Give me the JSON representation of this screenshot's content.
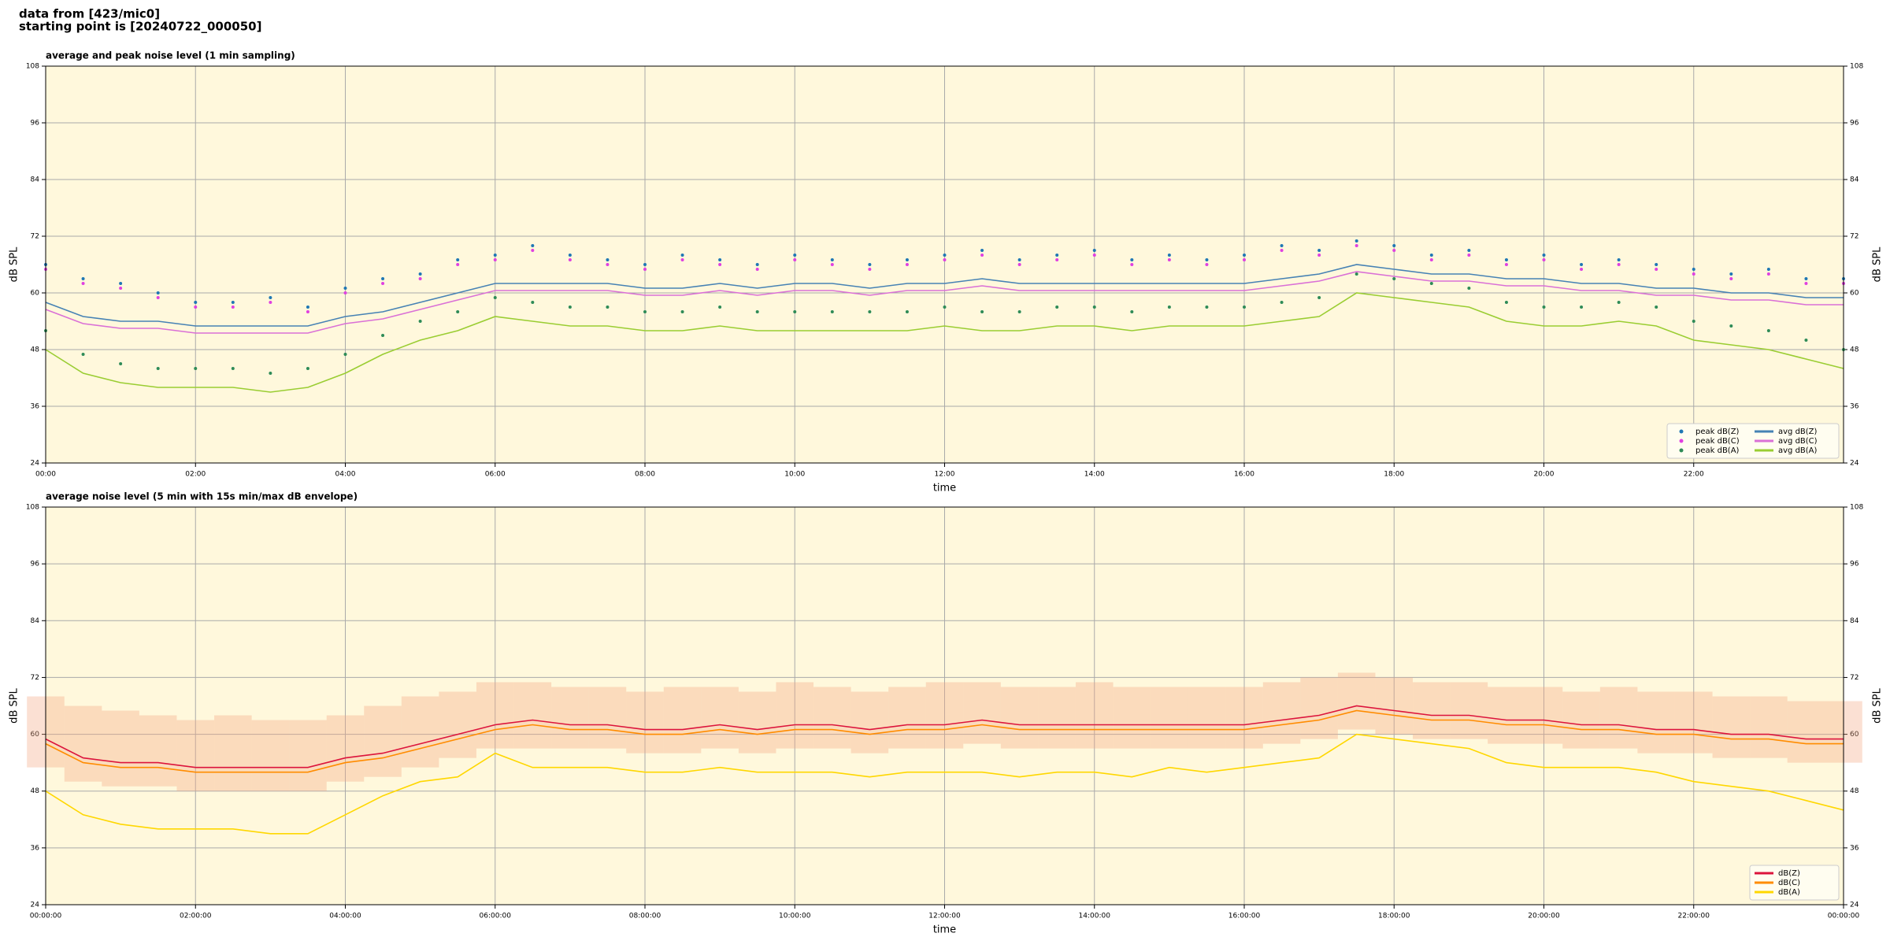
{
  "header": {
    "lines": [
      "data from [423/mic0]",
      "starting point is [20240722_000050]"
    ]
  },
  "chart_data": [
    {
      "type": "line",
      "title": "average and peak noise level (1 min sampling)",
      "xlabel": "time",
      "ylabel": "dB SPL",
      "x": [
        0,
        0.5,
        1,
        1.5,
        2,
        2.5,
        3,
        3.5,
        4,
        4.5,
        5,
        5.5,
        6,
        6.5,
        7,
        7.5,
        8,
        8.5,
        9,
        9.5,
        10,
        10.5,
        11,
        11.5,
        12,
        12.5,
        13,
        13.5,
        14,
        14.5,
        15,
        15.5,
        16,
        16.5,
        17,
        17.5,
        18,
        18.5,
        19,
        19.5,
        20,
        20.5,
        21,
        21.5,
        22,
        22.5,
        23,
        23.5,
        24
      ],
      "xlim": [
        0,
        24
      ],
      "xticks": [
        {
          "value": 0,
          "label": "00:00"
        },
        {
          "value": 2,
          "label": "02:00"
        },
        {
          "value": 4,
          "label": "04:00"
        },
        {
          "value": 6,
          "label": "06:00"
        },
        {
          "value": 8,
          "label": "08:00"
        },
        {
          "value": 10,
          "label": "10:00"
        },
        {
          "value": 12,
          "label": "12:00"
        },
        {
          "value": 14,
          "label": "14:00"
        },
        {
          "value": 16,
          "label": "16:00"
        },
        {
          "value": 18,
          "label": "18:00"
        },
        {
          "value": 20,
          "label": "20:00"
        },
        {
          "value": 22,
          "label": "22:00"
        }
      ],
      "ylim": [
        24,
        108
      ],
      "yticks": [
        24,
        36,
        48,
        60,
        72,
        84,
        96,
        108
      ],
      "grid": true,
      "legend": "lower right",
      "legend_columns": 2,
      "series": [
        {
          "name": "peak dB(Z)",
          "mode": "markers",
          "color": "#1f77b4",
          "values": [
            66,
            63,
            62,
            60,
            58,
            58,
            59,
            57,
            61,
            63,
            64,
            67,
            68,
            70,
            68,
            67,
            66,
            68,
            67,
            66,
            68,
            67,
            66,
            67,
            68,
            69,
            67,
            68,
            69,
            67,
            68,
            67,
            68,
            70,
            69,
            71,
            70,
            68,
            69,
            67,
            68,
            66,
            67,
            66,
            65,
            64,
            65,
            63,
            63
          ]
        },
        {
          "name": "peak dB(C)",
          "mode": "markers",
          "color": "#e040e0",
          "values": [
            65,
            62,
            61,
            59,
            57,
            57,
            58,
            56,
            60,
            62,
            63,
            66,
            67,
            69,
            67,
            66,
            65,
            67,
            66,
            65,
            67,
            66,
            65,
            66,
            67,
            68,
            66,
            67,
            68,
            66,
            67,
            66,
            67,
            69,
            68,
            70,
            69,
            67,
            68,
            66,
            67,
            65,
            66,
            65,
            64,
            63,
            64,
            62,
            62
          ]
        },
        {
          "name": "peak dB(A)",
          "mode": "markers",
          "color": "#2e8b57",
          "values": [
            52,
            47,
            45,
            44,
            44,
            44,
            43,
            44,
            47,
            51,
            54,
            56,
            59,
            58,
            57,
            57,
            56,
            56,
            57,
            56,
            56,
            56,
            56,
            56,
            57,
            56,
            56,
            57,
            57,
            56,
            57,
            57,
            57,
            58,
            59,
            64,
            63,
            62,
            61,
            58,
            57,
            57,
            58,
            57,
            54,
            53,
            52,
            50,
            48
          ]
        },
        {
          "name": "avg dB(Z)",
          "mode": "line",
          "color": "#4682b4",
          "values": [
            58,
            55,
            54,
            54,
            53,
            53,
            53,
            53,
            55,
            56,
            58,
            60,
            62,
            62,
            62,
            62,
            61,
            61,
            62,
            61,
            62,
            62,
            61,
            62,
            62,
            63,
            62,
            62,
            62,
            62,
            62,
            62,
            62,
            63,
            64,
            66,
            65,
            64,
            64,
            63,
            63,
            62,
            62,
            61,
            61,
            60,
            60,
            59,
            59
          ]
        },
        {
          "name": "avg dB(C)",
          "mode": "line",
          "color": "#da70d6",
          "values": [
            56.5,
            53.5,
            52.5,
            52.5,
            51.5,
            51.5,
            51.5,
            51.5,
            53.5,
            54.5,
            56.5,
            58.5,
            60.5,
            60.5,
            60.5,
            60.5,
            59.5,
            59.5,
            60.5,
            59.5,
            60.5,
            60.5,
            59.5,
            60.5,
            60.5,
            61.5,
            60.5,
            60.5,
            60.5,
            60.5,
            60.5,
            60.5,
            60.5,
            61.5,
            62.5,
            64.5,
            63.5,
            62.5,
            62.5,
            61.5,
            61.5,
            60.5,
            60.5,
            59.5,
            59.5,
            58.5,
            58.5,
            57.5,
            57.5
          ]
        },
        {
          "name": "avg dB(A)",
          "mode": "line",
          "color": "#9acd32",
          "values": [
            48,
            43,
            41,
            40,
            40,
            40,
            39,
            40,
            43,
            47,
            50,
            52,
            55,
            54,
            53,
            53,
            52,
            52,
            53,
            52,
            52,
            52,
            52,
            52,
            53,
            52,
            52,
            53,
            53,
            52,
            53,
            53,
            53,
            54,
            55,
            60,
            59,
            58,
            57,
            54,
            53,
            53,
            54,
            53,
            50,
            49,
            48,
            46,
            44
          ]
        }
      ]
    },
    {
      "type": "line",
      "title": "average noise level (5 min with 15s min/max dB envelope)",
      "xlabel": "time",
      "ylabel": "dB SPL",
      "x": [
        0,
        0.5,
        1,
        1.5,
        2,
        2.5,
        3,
        3.5,
        4,
        4.5,
        5,
        5.5,
        6,
        6.5,
        7,
        7.5,
        8,
        8.5,
        9,
        9.5,
        10,
        10.5,
        11,
        11.5,
        12,
        12.5,
        13,
        13.5,
        14,
        14.5,
        15,
        15.5,
        16,
        16.5,
        17,
        17.5,
        18,
        18.5,
        19,
        19.5,
        20,
        20.5,
        21,
        21.5,
        22,
        22.5,
        23,
        23.5,
        24
      ],
      "xlim": [
        0,
        24
      ],
      "xticks": [
        {
          "value": 0,
          "label": "00:00:00"
        },
        {
          "value": 2,
          "label": "02:00:00"
        },
        {
          "value": 4,
          "label": "04:00:00"
        },
        {
          "value": 6,
          "label": "06:00:00"
        },
        {
          "value": 8,
          "label": "08:00:00"
        },
        {
          "value": 10,
          "label": "10:00:00"
        },
        {
          "value": 12,
          "label": "12:00:00"
        },
        {
          "value": 14,
          "label": "14:00:00"
        },
        {
          "value": 16,
          "label": "16:00:00"
        },
        {
          "value": 18,
          "label": "18:00:00"
        },
        {
          "value": 20,
          "label": "20:00:00"
        },
        {
          "value": 22,
          "label": "22:00:00"
        },
        {
          "value": 24,
          "label": "00:00:00"
        }
      ],
      "ylim": [
        24,
        108
      ],
      "yticks": [
        24,
        36,
        48,
        60,
        72,
        84,
        96,
        108
      ],
      "grid": true,
      "legend": "lower right",
      "legend_columns": 1,
      "envelope": {
        "color": "#f4a582",
        "lower": [
          53,
          50,
          49,
          49,
          48,
          48,
          48,
          48,
          50,
          51,
          53,
          55,
          57,
          57,
          57,
          57,
          56,
          56,
          57,
          56,
          57,
          57,
          56,
          57,
          57,
          58,
          57,
          57,
          57,
          57,
          57,
          57,
          57,
          58,
          59,
          61,
          60,
          59,
          59,
          58,
          58,
          57,
          57,
          56,
          56,
          55,
          55,
          54,
          54
        ],
        "upper": [
          68,
          66,
          65,
          64,
          63,
          64,
          63,
          63,
          64,
          66,
          68,
          69,
          71,
          71,
          70,
          70,
          69,
          70,
          70,
          69,
          71,
          70,
          69,
          70,
          71,
          71,
          70,
          70,
          71,
          70,
          70,
          70,
          70,
          71,
          72,
          73,
          72,
          71,
          71,
          70,
          70,
          69,
          70,
          69,
          69,
          68,
          68,
          67,
          67
        ]
      },
      "series": [
        {
          "name": "dB(Z)",
          "mode": "line",
          "color": "#dc143c",
          "values": [
            59,
            55,
            54,
            54,
            53,
            53,
            53,
            53,
            55,
            56,
            58,
            60,
            62,
            63,
            62,
            62,
            61,
            61,
            62,
            61,
            62,
            62,
            61,
            62,
            62,
            63,
            62,
            62,
            62,
            62,
            62,
            62,
            62,
            63,
            64,
            66,
            65,
            64,
            64,
            63,
            63,
            62,
            62,
            61,
            61,
            60,
            60,
            59,
            59
          ]
        },
        {
          "name": "dB(C)",
          "mode": "line",
          "color": "#ff8c00",
          "values": [
            58,
            54,
            53,
            53,
            52,
            52,
            52,
            52,
            54,
            55,
            57,
            59,
            61,
            62,
            61,
            61,
            60,
            60,
            61,
            60,
            61,
            61,
            60,
            61,
            61,
            62,
            61,
            61,
            61,
            61,
            61,
            61,
            61,
            62,
            63,
            65,
            64,
            63,
            63,
            62,
            62,
            61,
            61,
            60,
            60,
            59,
            59,
            58,
            58
          ]
        },
        {
          "name": "dB(A)",
          "mode": "line",
          "color": "#ffd700",
          "values": [
            48,
            43,
            41,
            40,
            40,
            40,
            39,
            39,
            43,
            47,
            50,
            51,
            56,
            53,
            53,
            53,
            52,
            52,
            53,
            52,
            52,
            52,
            51,
            52,
            52,
            52,
            51,
            52,
            52,
            51,
            53,
            52,
            53,
            54,
            55,
            60,
            59,
            58,
            57,
            54,
            53,
            53,
            53,
            52,
            50,
            49,
            48,
            46,
            44
          ]
        }
      ]
    }
  ]
}
